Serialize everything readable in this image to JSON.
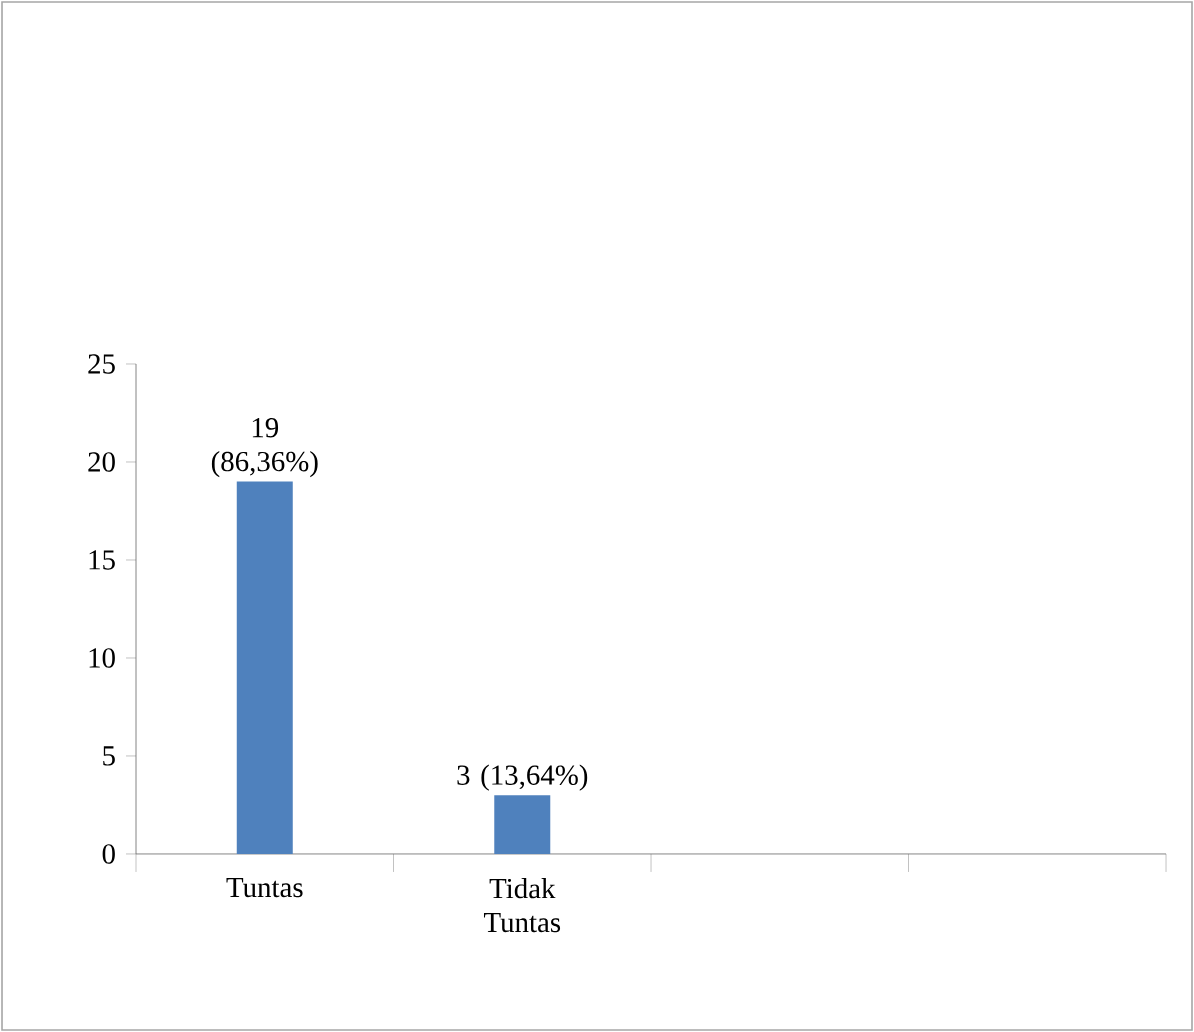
{
  "chart_data": {
    "type": "bar",
    "categories": [
      "Tuntas",
      "Tidak Tuntas",
      null,
      null
    ],
    "values": [
      19,
      3,
      null,
      null
    ],
    "value_labels": [
      "19 (86,36%)",
      "3 (13,64%)",
      null,
      null
    ],
    "color": "#4f81bd",
    "ylim": [
      0,
      25
    ],
    "yticks": [
      0,
      5,
      10,
      15,
      20,
      25
    ],
    "grid": false
  }
}
